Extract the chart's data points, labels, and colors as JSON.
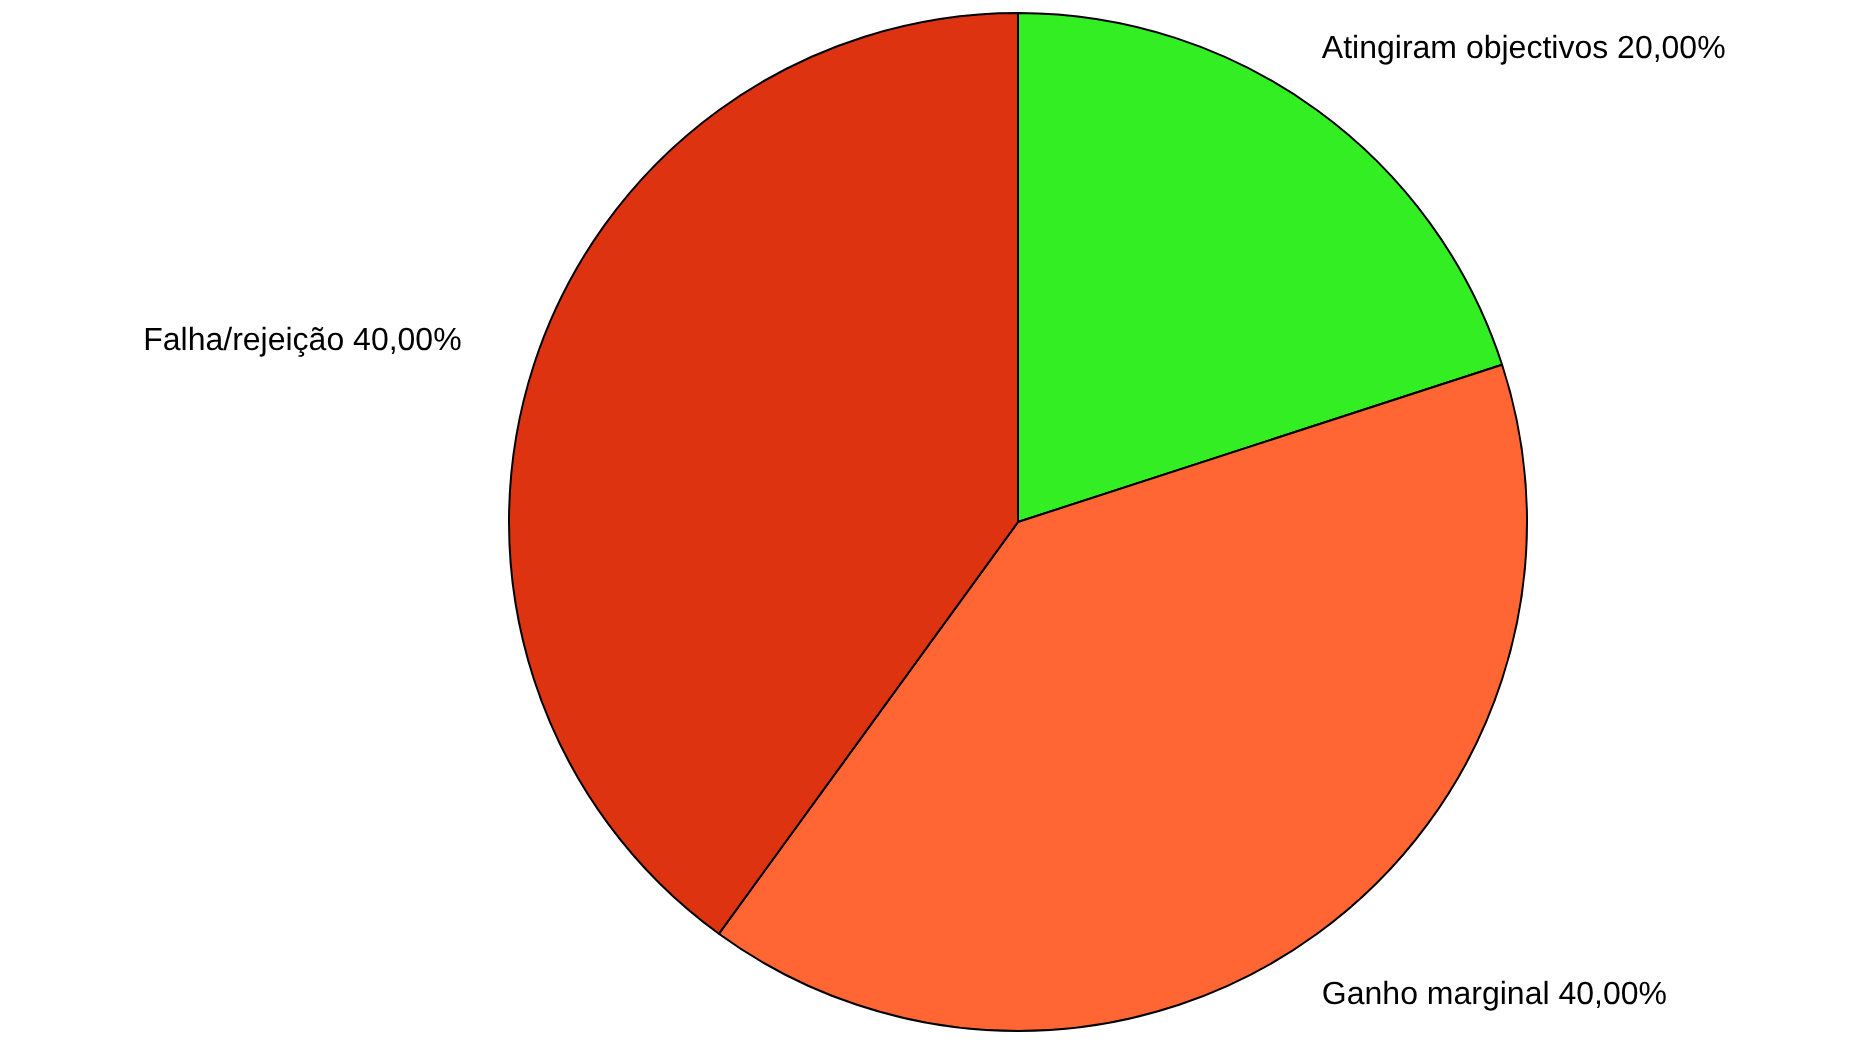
{
  "chart_data": {
    "type": "pie",
    "categories": [
      "Atingiram objectivos",
      "Ganho marginal",
      "Falha/rejeição"
    ],
    "values": [
      20,
      40,
      40
    ],
    "value_labels": [
      "20,00%",
      "40,00%",
      "40,00%"
    ],
    "colors": [
      "#33ee22",
      "#ff6633",
      "#dd3311"
    ],
    "legend": false
  }
}
